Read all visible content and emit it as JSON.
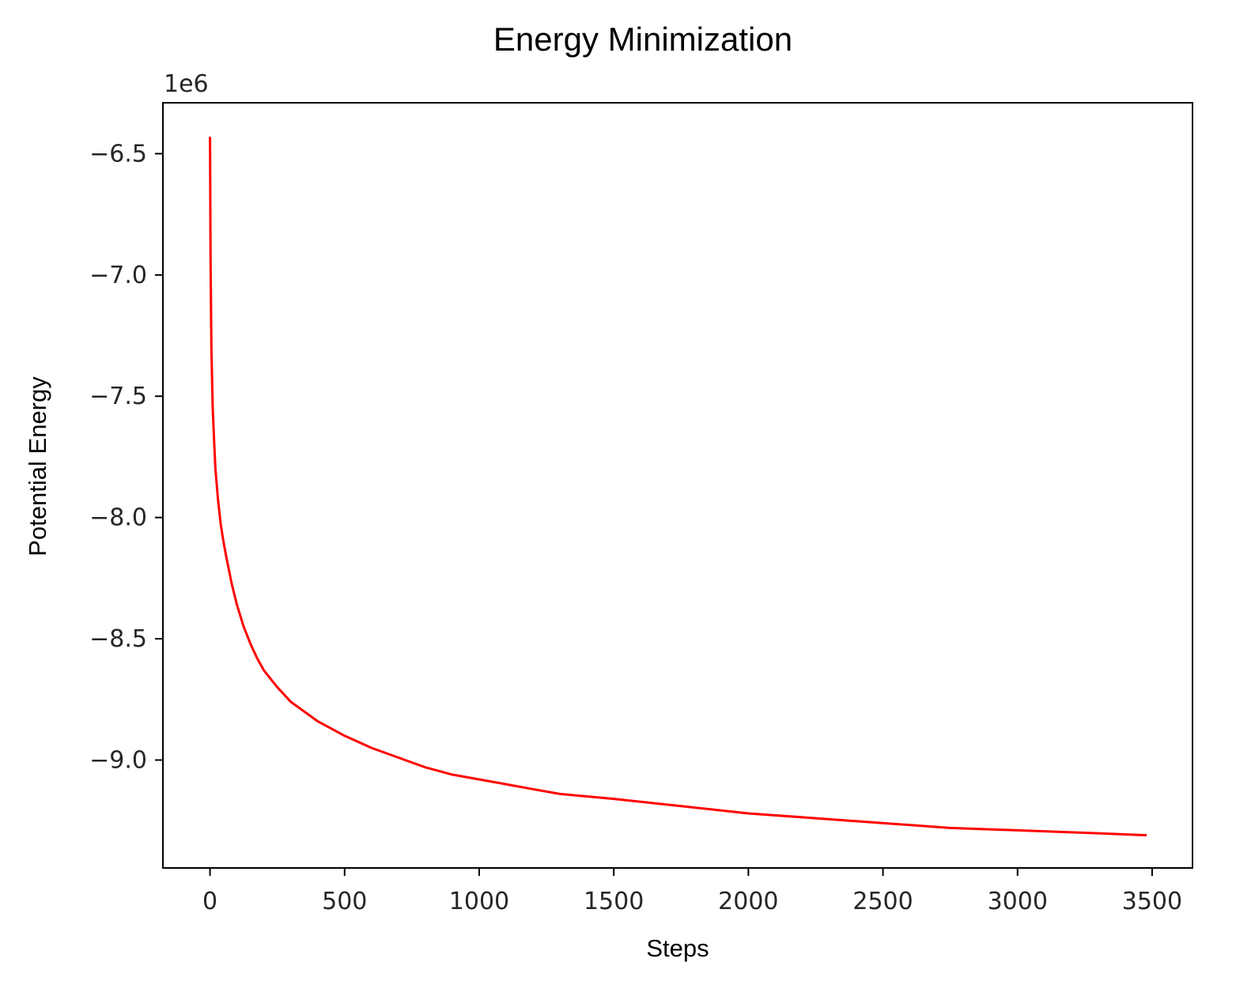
{
  "chart_data": {
    "type": "line",
    "title": "Energy Minimization",
    "xlabel": "Steps",
    "ylabel": "Potential Energy",
    "y_offset_label": "1e6",
    "xlim": [
      -175,
      3650
    ],
    "ylim": [
      -9.445,
      -6.29
    ],
    "x_ticks": [
      0,
      500,
      1000,
      1500,
      2000,
      2500,
      3000,
      3500
    ],
    "x_tick_labels": [
      "0",
      "500",
      "1000",
      "1500",
      "2000",
      "2500",
      "3000",
      "3500"
    ],
    "y_ticks": [
      -6.5,
      -7.0,
      -7.5,
      -8.0,
      -8.5,
      -9.0
    ],
    "y_tick_labels": [
      "−6.5",
      "−7.0",
      "−7.5",
      "−8.0",
      "−8.5",
      "−9.0"
    ],
    "grid": false,
    "legend": "none",
    "series": [
      {
        "color": "#ff0000",
        "x": [
          0,
          2,
          5,
          10,
          15,
          20,
          30,
          40,
          50,
          60,
          80,
          100,
          125,
          150,
          175,
          200,
          250,
          300,
          350,
          400,
          450,
          500,
          600,
          700,
          800,
          900,
          1000,
          1100,
          1200,
          1300,
          1400,
          1500,
          1750,
          2000,
          2250,
          2500,
          2750,
          3000,
          3250,
          3480
        ],
        "y": [
          -6.43,
          -6.9,
          -7.3,
          -7.55,
          -7.68,
          -7.8,
          -7.93,
          -8.03,
          -8.1,
          -8.16,
          -8.27,
          -8.36,
          -8.45,
          -8.52,
          -8.58,
          -8.63,
          -8.7,
          -8.76,
          -8.8,
          -8.84,
          -8.87,
          -8.9,
          -8.95,
          -8.99,
          -9.03,
          -9.06,
          -9.08,
          -9.1,
          -9.12,
          -9.14,
          -9.15,
          -9.16,
          -9.19,
          -9.22,
          -9.24,
          -9.26,
          -9.28,
          -9.29,
          -9.3,
          -9.31
        ]
      }
    ]
  }
}
